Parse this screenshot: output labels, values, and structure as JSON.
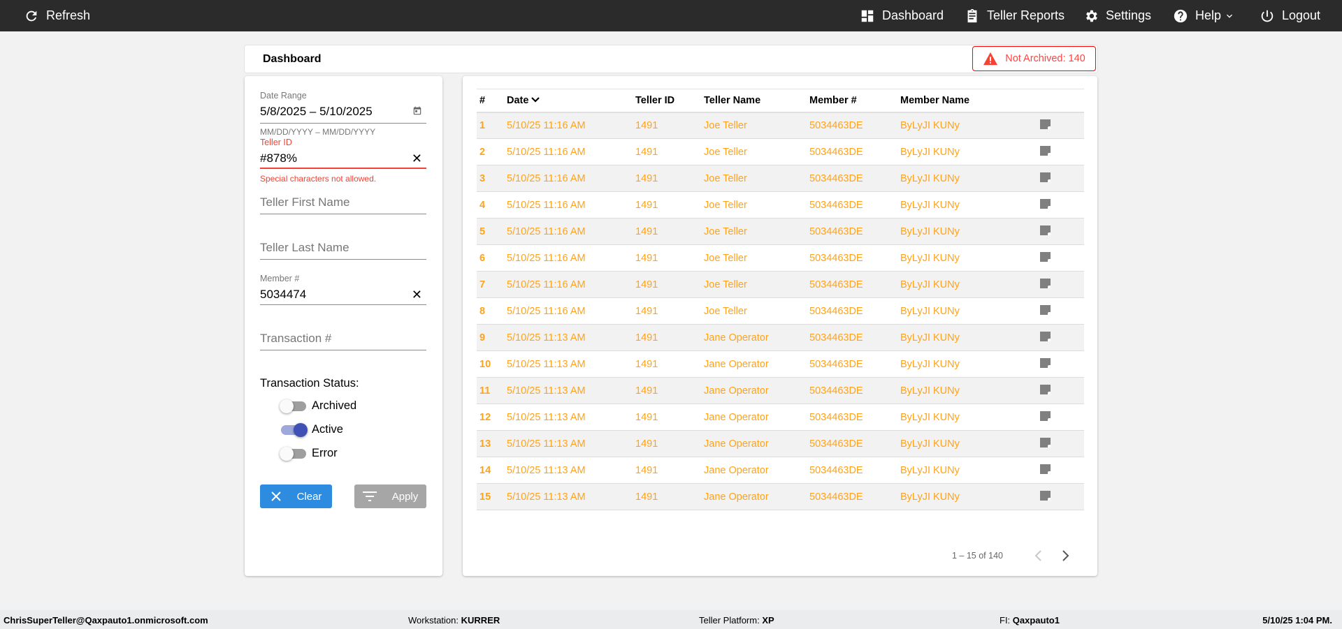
{
  "topbar": {
    "refresh": "Refresh",
    "dashboard": "Dashboard",
    "teller_reports": "Teller Reports",
    "settings": "Settings",
    "help": "Help",
    "logout": "Logout"
  },
  "header": {
    "title": "Dashboard",
    "badge": "Not Archived: 140",
    "badge_color": "#ff0000"
  },
  "filters": {
    "date_range": {
      "label": "Date Range",
      "value": "5/8/2025 – 5/10/2025",
      "hint": "MM/DD/YYYY – MM/DD/YYYY"
    },
    "teller_id": {
      "label": "Teller ID",
      "value": "#878%",
      "error": "Special characters not allowed."
    },
    "teller_first_name": {
      "placeholder": "Teller First Name"
    },
    "teller_last_name": {
      "placeholder": "Teller Last Name"
    },
    "member": {
      "label": "Member #",
      "value": "5034474"
    },
    "transaction": {
      "placeholder": "Transaction #"
    },
    "status_title": "Transaction Status:",
    "toggles": [
      {
        "label": "Archived",
        "on": false
      },
      {
        "label": "Active",
        "on": true
      },
      {
        "label": "Error",
        "on": false
      }
    ],
    "clear": "Clear",
    "apply": "Apply"
  },
  "table": {
    "columns": [
      "#",
      "Date",
      "Teller ID",
      "Teller Name",
      "Member #",
      "Member Name"
    ],
    "rows": [
      [
        "1",
        "5/10/25 11:16 AM",
        "1491",
        "Joe Teller",
        "5034463DE",
        "ByLyJI KUNy"
      ],
      [
        "2",
        "5/10/25 11:16 AM",
        "1491",
        "Joe Teller",
        "5034463DE",
        "ByLyJI KUNy"
      ],
      [
        "3",
        "5/10/25 11:16 AM",
        "1491",
        "Joe Teller",
        "5034463DE",
        "ByLyJI KUNy"
      ],
      [
        "4",
        "5/10/25 11:16 AM",
        "1491",
        "Joe Teller",
        "5034463DE",
        "ByLyJI KUNy"
      ],
      [
        "5",
        "5/10/25 11:16 AM",
        "1491",
        "Joe Teller",
        "5034463DE",
        "ByLyJI KUNy"
      ],
      [
        "6",
        "5/10/25 11:16 AM",
        "1491",
        "Joe Teller",
        "5034463DE",
        "ByLyJI KUNy"
      ],
      [
        "7",
        "5/10/25 11:16 AM",
        "1491",
        "Joe Teller",
        "5034463DE",
        "ByLyJI KUNy"
      ],
      [
        "8",
        "5/10/25 11:16 AM",
        "1491",
        "Joe Teller",
        "5034463DE",
        "ByLyJI KUNy"
      ],
      [
        "9",
        "5/10/25 11:13 AM",
        "1491",
        "Jane Operator",
        "5034463DE",
        "ByLyJI KUNy"
      ],
      [
        "10",
        "5/10/25 11:13 AM",
        "1491",
        "Jane Operator",
        "5034463DE",
        "ByLyJI KUNy"
      ],
      [
        "11",
        "5/10/25 11:13 AM",
        "1491",
        "Jane Operator",
        "5034463DE",
        "ByLyJI KUNy"
      ],
      [
        "12",
        "5/10/25 11:13 AM",
        "1491",
        "Jane Operator",
        "5034463DE",
        "ByLyJI KUNy"
      ],
      [
        "13",
        "5/10/25 11:13 AM",
        "1491",
        "Jane Operator",
        "5034463DE",
        "ByLyJI KUNy"
      ],
      [
        "14",
        "5/10/25 11:13 AM",
        "1491",
        "Jane Operator",
        "5034463DE",
        "ByLyJI KUNy"
      ],
      [
        "15",
        "5/10/25 11:13 AM",
        "1491",
        "Jane Operator",
        "5034463DE",
        "ByLyJI KUNy"
      ]
    ],
    "row_color": "#ffa31a",
    "pagination": "1 – 15 of 140"
  },
  "statusbar": {
    "user": "ChrisSuperTeller@Qaxpauto1.onmicrosoft.com",
    "workstation_label": "Workstation:",
    "workstation": "KURRER",
    "platform_label": "Teller Platform:",
    "platform": "XP",
    "fi_label": "FI:",
    "fi": "Qaxpauto1",
    "datetime": "5/10/25 1:04 PM."
  }
}
